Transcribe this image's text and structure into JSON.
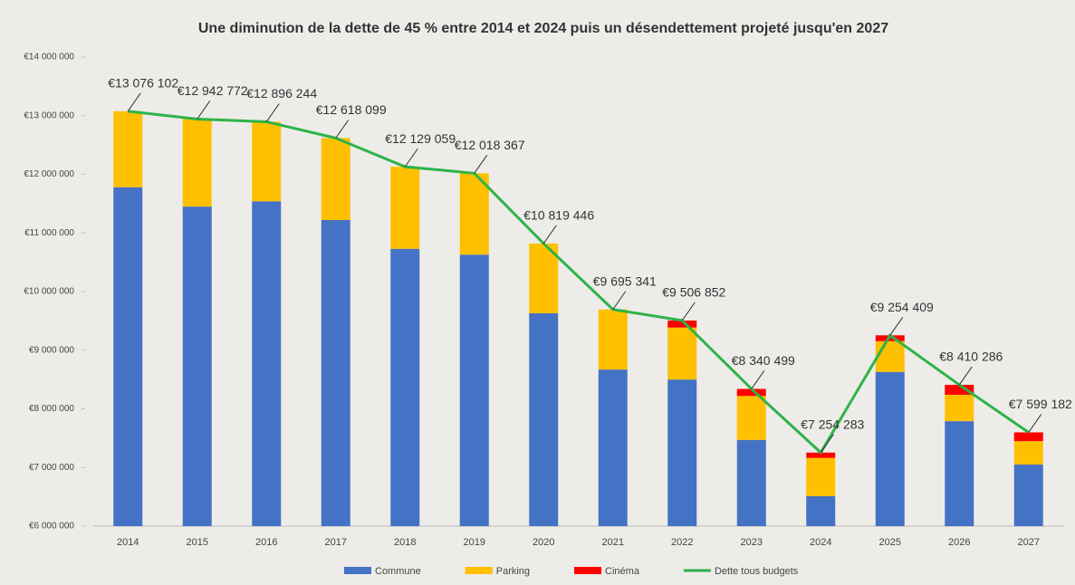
{
  "chart_data": {
    "type": "bar",
    "title": "Une diminution de la dette de 45 % entre 2014 et 2024 puis un désendettement projeté jusqu'en 2027",
    "categories": [
      "2014",
      "2015",
      "2016",
      "2017",
      "2018",
      "2019",
      "2020",
      "2021",
      "2022",
      "2023",
      "2024",
      "2025",
      "2026",
      "2027"
    ],
    "series": [
      {
        "name": "Commune",
        "color": "#4472c4",
        "values": [
          11780000,
          11450000,
          11540000,
          11220000,
          10730000,
          10630000,
          9630000,
          8670000,
          8500000,
          7470000,
          6510000,
          8630000,
          7790000,
          7050000
        ]
      },
      {
        "name": "Parking",
        "color": "#ffc000",
        "values": [
          1296102,
          1492772,
          1356244,
          1398099,
          1399059,
          1388367,
          1189446,
          1025341,
          886852,
          750499,
          654283,
          524409,
          450286,
          399182
        ]
      },
      {
        "name": "Cinéma",
        "color": "#ff0000",
        "values": [
          0,
          0,
          0,
          0,
          0,
          0,
          0,
          0,
          120000,
          120000,
          90000,
          100000,
          170000,
          150000
        ]
      },
      {
        "name": "Dette tous budgets",
        "type": "line",
        "color": "#2db34a",
        "values": [
          13076102,
          12942772,
          12896244,
          12618099,
          12129059,
          12018367,
          10819446,
          9695341,
          9506852,
          8340499,
          7254283,
          9254409,
          8410286,
          7599182
        ],
        "value_labels": [
          "€13 076 102",
          "€12 942 772",
          "€12 896 244",
          "€12 618 099",
          "€12 129 059",
          "€12 018 367",
          "€10 819 446",
          "€9 695 341",
          "€9 506 852",
          "€8 340 499",
          "€7 254 283",
          "€9 254 409",
          "€8 410 286",
          "€7 599 182"
        ]
      }
    ],
    "ylim": [
      6000000,
      14000000
    ],
    "yticks": [
      {
        "value": 6000000,
        "label": "€6 000 000"
      },
      {
        "value": 7000000,
        "label": "€7 000 000"
      },
      {
        "value": 8000000,
        "label": "€8 000 000"
      },
      {
        "value": 9000000,
        "label": "€9 000 000"
      },
      {
        "value": 10000000,
        "label": "€10 000 000"
      },
      {
        "value": 11000000,
        "label": "€11 000 000"
      },
      {
        "value": 12000000,
        "label": "€12 000 000"
      },
      {
        "value": 13000000,
        "label": "€13 000 000"
      },
      {
        "value": 14000000,
        "label": "€14 000 000"
      }
    ],
    "legend": "bottom"
  }
}
